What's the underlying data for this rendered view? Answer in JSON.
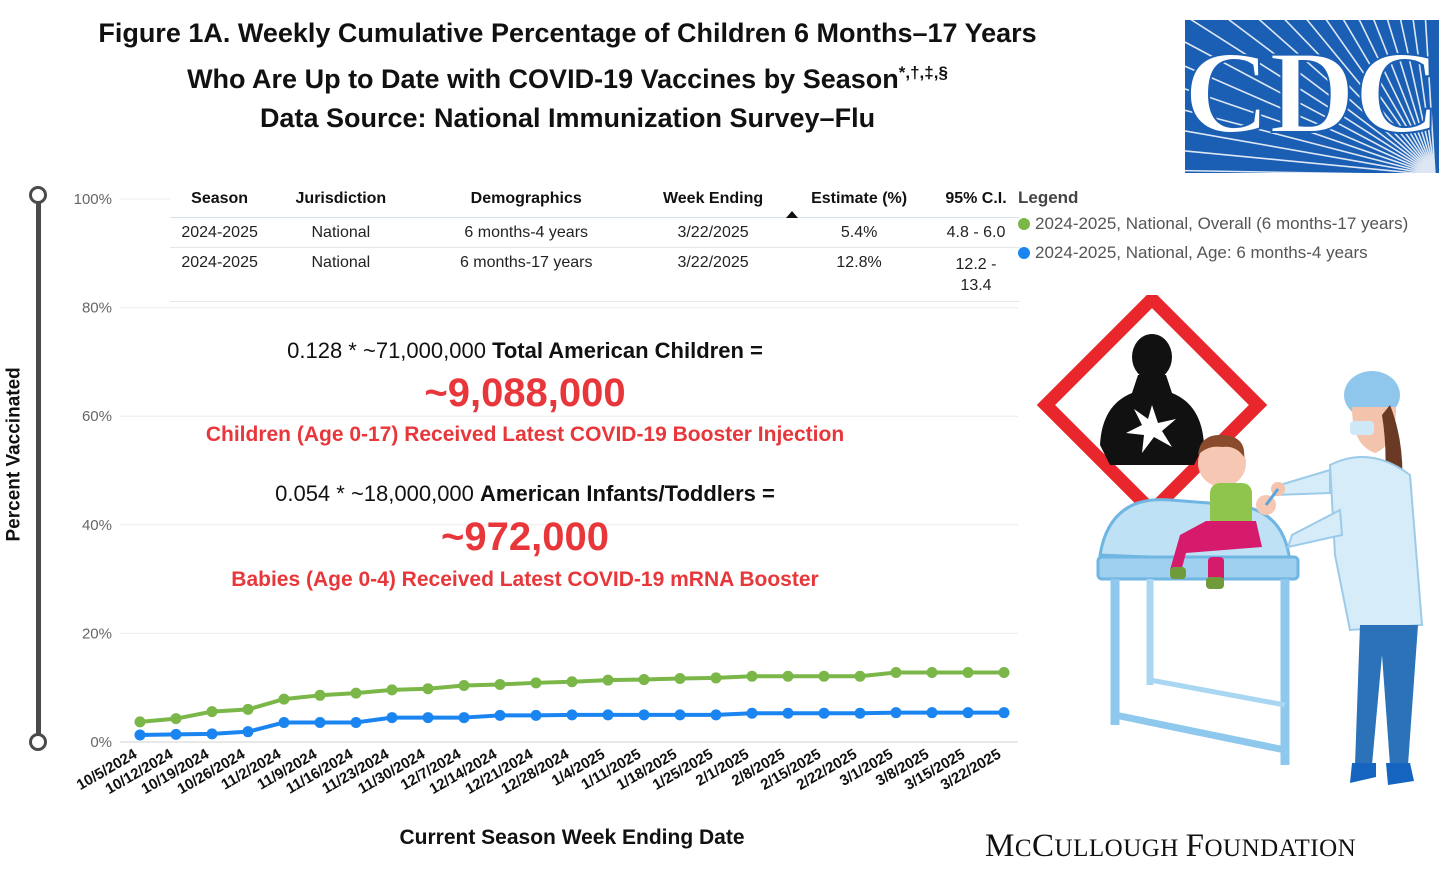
{
  "title": {
    "line1": "Figure 1A. Weekly Cumulative Percentage of Children 6 Months–17 Years",
    "line2_main": "Who Are Up to Date with COVID-19 Vaccines by Season",
    "line2_marks": "*,†,‡,§",
    "line3": "Data Source: National Immunization Survey–Flu"
  },
  "logo": {
    "text": "CDC",
    "color": "#1a5fb4"
  },
  "table": {
    "headers": [
      "Season",
      "Jurisdiction",
      "Demographics",
      "Week Ending",
      "Estimate (%)",
      "95% C.I."
    ],
    "sort_icon": "sort-ascending-icon",
    "rows": [
      [
        "2024-2025",
        "National",
        "6 months-4 years",
        "3/22/2025",
        "5.4%",
        "4.8 - 6.0"
      ],
      [
        "2024-2025",
        "National",
        "6 months-17 years",
        "3/22/2025",
        "12.8%",
        "12.2 - 13.4"
      ]
    ]
  },
  "legend": {
    "title": "Legend",
    "items": [
      {
        "label": "2024-2025, National, Overall (6 months-17 years)",
        "color": "#7ab648"
      },
      {
        "label": "2024-2025, National, Age: 6 months-4 years",
        "color": "#1a85f0"
      }
    ]
  },
  "annotations": {
    "formula1_plain": "0.128 * ~71,000,000 ",
    "formula1_bold": "Total American Children =",
    "result1": "~9,088,000",
    "caption1": "Children (Age 0-17) Received Latest COVID-19 Booster Injection",
    "formula2_plain": "0.054 * ~18,000,000 ",
    "formula2_bold": "American Infants/Toddlers =",
    "result2": "~972,000",
    "caption2": "Babies (Age 0-4) Received Latest COVID-19 mRNA Booster",
    "color": "#e8373b"
  },
  "footer": {
    "foundation_parts": [
      "M",
      "C",
      "C",
      "ULLOUGH ",
      "F",
      "OUNDATION"
    ]
  },
  "illustration": {
    "warning_icon": "health-hazard-warning-icon",
    "scene": "nurse-vaccinating-toddler-illustration"
  },
  "chart_data": {
    "type": "line",
    "xlabel": "Current Season Week Ending Date",
    "ylabel": "Percent Vaccinated",
    "ylim": [
      0,
      100
    ],
    "yticks": [
      0,
      20,
      40,
      60,
      80,
      100
    ],
    "ytick_labels": [
      "0%",
      "20%",
      "40%",
      "60%",
      "80%",
      "100%"
    ],
    "grid": true,
    "categories": [
      "10/5/2024",
      "10/12/2024",
      "10/19/2024",
      "10/26/2024",
      "11/2/2024",
      "11/9/2024",
      "11/16/2024",
      "11/23/2024",
      "11/30/2024",
      "12/7/2024",
      "12/14/2024",
      "12/21/2024",
      "12/28/2024",
      "1/4/2025",
      "1/11/2025",
      "1/18/2025",
      "1/25/2025",
      "2/1/2025",
      "2/8/2025",
      "2/15/2025",
      "2/22/2025",
      "3/1/2025",
      "3/8/2025",
      "3/15/2025",
      "3/22/2025"
    ],
    "series": [
      {
        "name": "2024-2025, National, Overall (6 months-17 years)",
        "color": "#7ab648",
        "values": [
          3.7,
          4.3,
          5.6,
          6.0,
          7.9,
          8.6,
          9.0,
          9.6,
          9.8,
          10.4,
          10.6,
          10.9,
          11.1,
          11.4,
          11.5,
          11.7,
          11.8,
          12.1,
          12.1,
          12.1,
          12.1,
          12.8,
          12.8,
          12.8,
          12.8
        ]
      },
      {
        "name": "2024-2025, National, Age: 6 months-4 years",
        "color": "#1a85f0",
        "values": [
          1.3,
          1.4,
          1.5,
          1.9,
          3.6,
          3.6,
          3.6,
          4.5,
          4.5,
          4.5,
          4.9,
          4.9,
          5.0,
          5.0,
          5.0,
          5.0,
          5.0,
          5.3,
          5.3,
          5.3,
          5.3,
          5.4,
          5.4,
          5.4,
          5.4
        ]
      }
    ]
  }
}
